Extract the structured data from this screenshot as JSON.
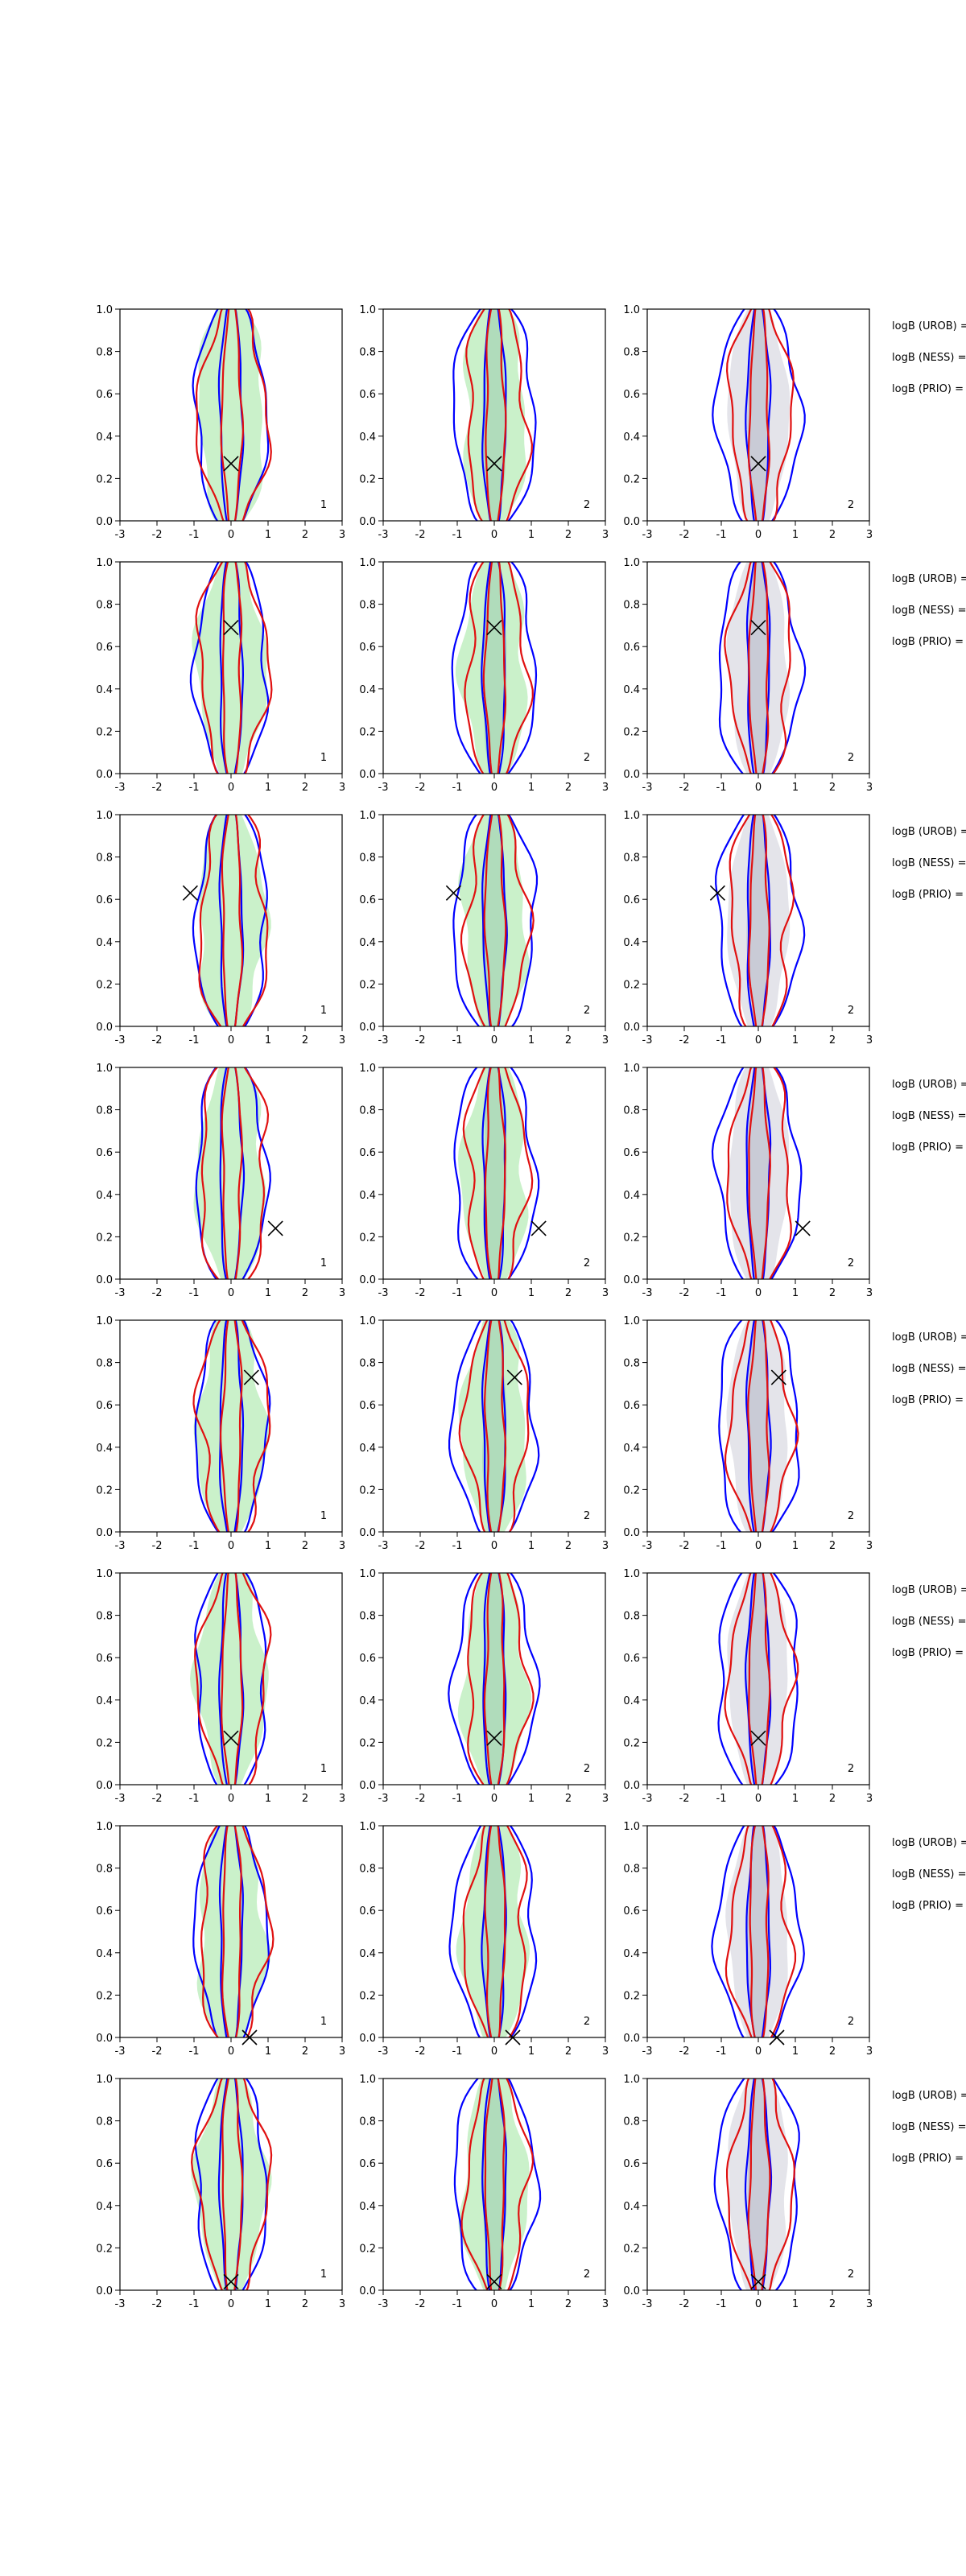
{
  "chart_data": [
    {
      "type": "contour",
      "annotation": "1",
      "x": [
        0
      ],
      "y": [
        0.27
      ],
      "xlim": [
        -3,
        3
      ],
      "ylim": [
        0,
        1
      ],
      "xticks": [
        -3,
        -2,
        -1,
        0,
        1,
        2,
        3
      ],
      "yticks": [
        {
          "value": 0,
          "label": "0.0"
        },
        {
          "value": 0.2,
          "label": "0.2"
        },
        {
          "value": 0.4,
          "label": "0.4"
        },
        {
          "value": 0.6,
          "label": "0.6"
        },
        {
          "value": 0.8,
          "label": "0.8"
        },
        {
          "value": 1,
          "label": "1.0"
        }
      ]
    },
    {
      "type": "contour",
      "annotation": "2",
      "x": [
        0
      ],
      "y": [
        0.27
      ],
      "xlim": [
        -3,
        3
      ],
      "ylim": [
        0,
        1
      ],
      "xticks": [
        -3,
        -2,
        -1,
        0,
        1,
        2,
        3
      ],
      "yticks": [
        {
          "value": 0,
          "label": "0.0"
        },
        {
          "value": 0.2,
          "label": "0.2"
        },
        {
          "value": 0.4,
          "label": "0.4"
        },
        {
          "value": 0.6,
          "label": "0.6"
        },
        {
          "value": 0.8,
          "label": "0.8"
        },
        {
          "value": 1,
          "label": "1.0"
        }
      ]
    },
    {
      "type": "contour",
      "annotation": "2",
      "x": [
        0
      ],
      "y": [
        0.27
      ],
      "xlim": [
        -3,
        3
      ],
      "ylim": [
        0,
        1
      ],
      "xticks": [
        -3,
        -2,
        -1,
        0,
        1,
        2,
        3
      ],
      "yticks": [
        {
          "value": 0,
          "label": "0.0"
        },
        {
          "value": 0.2,
          "label": "0.2"
        },
        {
          "value": 0.4,
          "label": "0.4"
        },
        {
          "value": 0.6,
          "label": "0.6"
        },
        {
          "value": 0.8,
          "label": "0.8"
        },
        {
          "value": 1,
          "label": "1.0"
        }
      ]
    },
    {
      "type": "contour",
      "annotation": "1",
      "x": [
        0
      ],
      "y": [
        0.69
      ],
      "xlim": [
        -3,
        3
      ],
      "ylim": [
        0,
        1
      ],
      "xticks": [
        -3,
        -2,
        -1,
        0,
        1,
        2,
        3
      ],
      "yticks": [
        {
          "value": 0,
          "label": "0.0"
        },
        {
          "value": 0.2,
          "label": "0.2"
        },
        {
          "value": 0.4,
          "label": "0.4"
        },
        {
          "value": 0.6,
          "label": "0.6"
        },
        {
          "value": 0.8,
          "label": "0.8"
        },
        {
          "value": 1,
          "label": "1.0"
        }
      ]
    },
    {
      "type": "contour",
      "annotation": "2",
      "x": [
        0
      ],
      "y": [
        0.69
      ],
      "xlim": [
        -3,
        3
      ],
      "ylim": [
        0,
        1
      ],
      "xticks": [
        -3,
        -2,
        -1,
        0,
        1,
        2,
        3
      ],
      "yticks": [
        {
          "value": 0,
          "label": "0.0"
        },
        {
          "value": 0.2,
          "label": "0.2"
        },
        {
          "value": 0.4,
          "label": "0.4"
        },
        {
          "value": 0.6,
          "label": "0.6"
        },
        {
          "value": 0.8,
          "label": "0.8"
        },
        {
          "value": 1,
          "label": "1.0"
        }
      ]
    },
    {
      "type": "contour",
      "annotation": "2",
      "x": [
        0
      ],
      "y": [
        0.69
      ],
      "xlim": [
        -3,
        3
      ],
      "ylim": [
        0,
        1
      ],
      "xticks": [
        -3,
        -2,
        -1,
        0,
        1,
        2,
        3
      ],
      "yticks": [
        {
          "value": 0,
          "label": "0.0"
        },
        {
          "value": 0.2,
          "label": "0.2"
        },
        {
          "value": 0.4,
          "label": "0.4"
        },
        {
          "value": 0.6,
          "label": "0.6"
        },
        {
          "value": 0.8,
          "label": "0.8"
        },
        {
          "value": 1,
          "label": "1.0"
        }
      ]
    },
    {
      "type": "contour",
      "annotation": "1",
      "x": [
        -1.1
      ],
      "y": [
        0.63
      ],
      "xlim": [
        -3,
        3
      ],
      "ylim": [
        0,
        1
      ],
      "xticks": [
        -3,
        -2,
        -1,
        0,
        1,
        2,
        3
      ],
      "yticks": [
        {
          "value": 0,
          "label": "0.0"
        },
        {
          "value": 0.2,
          "label": "0.2"
        },
        {
          "value": 0.4,
          "label": "0.4"
        },
        {
          "value": 0.6,
          "label": "0.6"
        },
        {
          "value": 0.8,
          "label": "0.8"
        },
        {
          "value": 1,
          "label": "1.0"
        }
      ]
    },
    {
      "type": "contour",
      "annotation": "2",
      "x": [
        -1.1
      ],
      "y": [
        0.63
      ],
      "xlim": [
        -3,
        3
      ],
      "ylim": [
        0,
        1
      ],
      "xticks": [
        -3,
        -2,
        -1,
        0,
        1,
        2,
        3
      ],
      "yticks": [
        {
          "value": 0,
          "label": "0.0"
        },
        {
          "value": 0.2,
          "label": "0.2"
        },
        {
          "value": 0.4,
          "label": "0.4"
        },
        {
          "value": 0.6,
          "label": "0.6"
        },
        {
          "value": 0.8,
          "label": "0.8"
        },
        {
          "value": 1,
          "label": "1.0"
        }
      ]
    },
    {
      "type": "contour",
      "annotation": "2",
      "x": [
        -1.1
      ],
      "y": [
        0.63
      ],
      "xlim": [
        -3,
        3
      ],
      "ylim": [
        0,
        1
      ],
      "xticks": [
        -3,
        -2,
        -1,
        0,
        1,
        2,
        3
      ],
      "yticks": [
        {
          "value": 0,
          "label": "0.0"
        },
        {
          "value": 0.2,
          "label": "0.2"
        },
        {
          "value": 0.4,
          "label": "0.4"
        },
        {
          "value": 0.6,
          "label": "0.6"
        },
        {
          "value": 0.8,
          "label": "0.8"
        },
        {
          "value": 1,
          "label": "1.0"
        }
      ]
    },
    {
      "type": "contour",
      "annotation": "1",
      "x": [
        1.2
      ],
      "y": [
        0.24
      ],
      "xlim": [
        -3,
        3
      ],
      "ylim": [
        0,
        1
      ],
      "xticks": [
        -3,
        -2,
        -1,
        0,
        1,
        2,
        3
      ],
      "yticks": [
        {
          "value": 0,
          "label": "0.0"
        },
        {
          "value": 0.2,
          "label": "0.2"
        },
        {
          "value": 0.4,
          "label": "0.4"
        },
        {
          "value": 0.6,
          "label": "0.6"
        },
        {
          "value": 0.8,
          "label": "0.8"
        },
        {
          "value": 1,
          "label": "1.0"
        }
      ]
    },
    {
      "type": "contour",
      "annotation": "2",
      "x": [
        1.2
      ],
      "y": [
        0.24
      ],
      "xlim": [
        -3,
        3
      ],
      "ylim": [
        0,
        1
      ],
      "xticks": [
        -3,
        -2,
        -1,
        0,
        1,
        2,
        3
      ],
      "yticks": [
        {
          "value": 0,
          "label": "0.0"
        },
        {
          "value": 0.2,
          "label": "0.2"
        },
        {
          "value": 0.4,
          "label": "0.4"
        },
        {
          "value": 0.6,
          "label": "0.6"
        },
        {
          "value": 0.8,
          "label": "0.8"
        },
        {
          "value": 1,
          "label": "1.0"
        }
      ]
    },
    {
      "type": "contour",
      "annotation": "2",
      "x": [
        1.2
      ],
      "y": [
        0.24
      ],
      "xlim": [
        -3,
        3
      ],
      "ylim": [
        0,
        1
      ],
      "xticks": [
        -3,
        -2,
        -1,
        0,
        1,
        2,
        3
      ],
      "yticks": [
        {
          "value": 0,
          "label": "0.0"
        },
        {
          "value": 0.2,
          "label": "0.2"
        },
        {
          "value": 0.4,
          "label": "0.4"
        },
        {
          "value": 0.6,
          "label": "0.6"
        },
        {
          "value": 0.8,
          "label": "0.8"
        },
        {
          "value": 1,
          "label": "1.0"
        }
      ]
    },
    {
      "type": "contour",
      "annotation": "1",
      "x": [
        0.55
      ],
      "y": [
        0.73
      ],
      "xlim": [
        -3,
        3
      ],
      "ylim": [
        0,
        1
      ],
      "xticks": [
        -3,
        -2,
        -1,
        0,
        1,
        2,
        3
      ],
      "yticks": [
        {
          "value": 0,
          "label": "0.0"
        },
        {
          "value": 0.2,
          "label": "0.2"
        },
        {
          "value": 0.4,
          "label": "0.4"
        },
        {
          "value": 0.6,
          "label": "0.6"
        },
        {
          "value": 0.8,
          "label": "0.8"
        },
        {
          "value": 1,
          "label": "1.0"
        }
      ]
    },
    {
      "type": "contour",
      "annotation": "2",
      "x": [
        0.55
      ],
      "y": [
        0.73
      ],
      "xlim": [
        -3,
        3
      ],
      "ylim": [
        0,
        1
      ],
      "xticks": [
        -3,
        -2,
        -1,
        0,
        1,
        2,
        3
      ],
      "yticks": [
        {
          "value": 0,
          "label": "0.0"
        },
        {
          "value": 0.2,
          "label": "0.2"
        },
        {
          "value": 0.4,
          "label": "0.4"
        },
        {
          "value": 0.6,
          "label": "0.6"
        },
        {
          "value": 0.8,
          "label": "0.8"
        },
        {
          "value": 1,
          "label": "1.0"
        }
      ]
    },
    {
      "type": "contour",
      "annotation": "2",
      "x": [
        0.55
      ],
      "y": [
        0.73
      ],
      "xlim": [
        -3,
        3
      ],
      "ylim": [
        0,
        1
      ],
      "xticks": [
        -3,
        -2,
        -1,
        0,
        1,
        2,
        3
      ],
      "yticks": [
        {
          "value": 0,
          "label": "0.0"
        },
        {
          "value": 0.2,
          "label": "0.2"
        },
        {
          "value": 0.4,
          "label": "0.4"
        },
        {
          "value": 0.6,
          "label": "0.6"
        },
        {
          "value": 0.8,
          "label": "0.8"
        },
        {
          "value": 1,
          "label": "1.0"
        }
      ]
    },
    {
      "type": "contour",
      "annotation": "1",
      "x": [
        0
      ],
      "y": [
        0.22
      ],
      "xlim": [
        -3,
        3
      ],
      "ylim": [
        0,
        1
      ],
      "xticks": [
        -3,
        -2,
        -1,
        0,
        1,
        2,
        3
      ],
      "yticks": [
        {
          "value": 0,
          "label": "0.0"
        },
        {
          "value": 0.2,
          "label": "0.2"
        },
        {
          "value": 0.4,
          "label": "0.4"
        },
        {
          "value": 0.6,
          "label": "0.6"
        },
        {
          "value": 0.8,
          "label": "0.8"
        },
        {
          "value": 1,
          "label": "1.0"
        }
      ]
    },
    {
      "type": "contour",
      "annotation": "2",
      "x": [
        0
      ],
      "y": [
        0.22
      ],
      "xlim": [
        -3,
        3
      ],
      "ylim": [
        0,
        1
      ],
      "xticks": [
        -3,
        -2,
        -1,
        0,
        1,
        2,
        3
      ],
      "yticks": [
        {
          "value": 0,
          "label": "0.0"
        },
        {
          "value": 0.2,
          "label": "0.2"
        },
        {
          "value": 0.4,
          "label": "0.4"
        },
        {
          "value": 0.6,
          "label": "0.6"
        },
        {
          "value": 0.8,
          "label": "0.8"
        },
        {
          "value": 1,
          "label": "1.0"
        }
      ]
    },
    {
      "type": "contour",
      "annotation": "2",
      "x": [
        0
      ],
      "y": [
        0.22
      ],
      "xlim": [
        -3,
        3
      ],
      "ylim": [
        0,
        1
      ],
      "xticks": [
        -3,
        -2,
        -1,
        0,
        1,
        2,
        3
      ],
      "yticks": [
        {
          "value": 0,
          "label": "0.0"
        },
        {
          "value": 0.2,
          "label": "0.2"
        },
        {
          "value": 0.4,
          "label": "0.4"
        },
        {
          "value": 0.6,
          "label": "0.6"
        },
        {
          "value": 0.8,
          "label": "0.8"
        },
        {
          "value": 1,
          "label": "1.0"
        }
      ]
    },
    {
      "type": "contour",
      "annotation": "1",
      "x": [
        0.5
      ],
      "y": [
        0
      ],
      "xlim": [
        -3,
        3
      ],
      "ylim": [
        0,
        1
      ],
      "xticks": [
        -3,
        -2,
        -1,
        0,
        1,
        2,
        3
      ],
      "yticks": [
        {
          "value": 0,
          "label": "0.0"
        },
        {
          "value": 0.2,
          "label": "0.2"
        },
        {
          "value": 0.4,
          "label": "0.4"
        },
        {
          "value": 0.6,
          "label": "0.6"
        },
        {
          "value": 0.8,
          "label": "0.8"
        },
        {
          "value": 1,
          "label": "1.0"
        }
      ]
    },
    {
      "type": "contour",
      "annotation": "2",
      "x": [
        0.5
      ],
      "y": [
        0
      ],
      "xlim": [
        -3,
        3
      ],
      "ylim": [
        0,
        1
      ],
      "xticks": [
        -3,
        -2,
        -1,
        0,
        1,
        2,
        3
      ],
      "yticks": [
        {
          "value": 0,
          "label": "0.0"
        },
        {
          "value": 0.2,
          "label": "0.2"
        },
        {
          "value": 0.4,
          "label": "0.4"
        },
        {
          "value": 0.6,
          "label": "0.6"
        },
        {
          "value": 0.8,
          "label": "0.8"
        },
        {
          "value": 1,
          "label": "1.0"
        }
      ]
    },
    {
      "type": "contour",
      "annotation": "2",
      "x": [
        0.5
      ],
      "y": [
        0
      ],
      "xlim": [
        -3,
        3
      ],
      "ylim": [
        0,
        1
      ],
      "xticks": [
        -3,
        -2,
        -1,
        0,
        1,
        2,
        3
      ],
      "yticks": [
        {
          "value": 0,
          "label": "0.0"
        },
        {
          "value": 0.2,
          "label": "0.2"
        },
        {
          "value": 0.4,
          "label": "0.4"
        },
        {
          "value": 0.6,
          "label": "0.6"
        },
        {
          "value": 0.8,
          "label": "0.8"
        },
        {
          "value": 1,
          "label": "1.0"
        }
      ]
    },
    {
      "type": "contour",
      "annotation": "1",
      "x": [
        0
      ],
      "y": [
        0.04
      ],
      "xlim": [
        -3,
        3
      ],
      "ylim": [
        0,
        1
      ],
      "xticks": [
        -3,
        -2,
        -1,
        0,
        1,
        2,
        3
      ],
      "yticks": [
        {
          "value": 0,
          "label": "0.0"
        },
        {
          "value": 0.2,
          "label": "0.2"
        },
        {
          "value": 0.4,
          "label": "0.4"
        },
        {
          "value": 0.6,
          "label": "0.6"
        },
        {
          "value": 0.8,
          "label": "0.8"
        },
        {
          "value": 1,
          "label": "1.0"
        }
      ]
    },
    {
      "type": "contour",
      "annotation": "2",
      "x": [
        0
      ],
      "y": [
        0.04
      ],
      "xlim": [
        -3,
        3
      ],
      "ylim": [
        0,
        1
      ],
      "xticks": [
        -3,
        -2,
        -1,
        0,
        1,
        2,
        3
      ],
      "yticks": [
        {
          "value": 0,
          "label": "0.0"
        },
        {
          "value": 0.2,
          "label": "0.2"
        },
        {
          "value": 0.4,
          "label": "0.4"
        },
        {
          "value": 0.6,
          "label": "0.6"
        },
        {
          "value": 0.8,
          "label": "0.8"
        },
        {
          "value": 1,
          "label": "1.0"
        }
      ]
    },
    {
      "type": "contour",
      "annotation": "2",
      "x": [
        0
      ],
      "y": [
        0.04
      ],
      "xlim": [
        -3,
        3
      ],
      "ylim": [
        0,
        1
      ],
      "xticks": [
        -3,
        -2,
        -1,
        0,
        1,
        2,
        3
      ],
      "yticks": [
        {
          "value": 0,
          "label": "0.0"
        },
        {
          "value": 0.2,
          "label": "0.2"
        },
        {
          "value": 0.4,
          "label": "0.4"
        },
        {
          "value": 0.6,
          "label": "0.6"
        },
        {
          "value": 0.8,
          "label": "0.8"
        },
        {
          "value": 1,
          "label": "1.0"
        }
      ]
    }
  ],
  "row_labels": [
    [
      "logB (UROB) =",
      "logB (NESS) =",
      "logB (PRIO) ="
    ],
    [
      "logB (UROB) =",
      "logB (NESS) =",
      "logB (PRIO) ="
    ],
    [
      "logB (UROB) =",
      "logB (NESS) =",
      "logB (PRIO) ="
    ],
    [
      "logB (UROB) =",
      "logB (NESS) =",
      "logB (PRIO) ="
    ],
    [
      "logB (UROB) =",
      "logB (NESS) =",
      "logB (PRIO) ="
    ],
    [
      "logB (UROB) =",
      "logB (NESS) =",
      "logB (PRIO) ="
    ],
    [
      "logB (UROB) =",
      "logB (NESS) =",
      "logB (PRIO) ="
    ],
    [
      "logB (UROB) =",
      "logB (NESS) =",
      "logB (PRIO) ="
    ]
  ]
}
